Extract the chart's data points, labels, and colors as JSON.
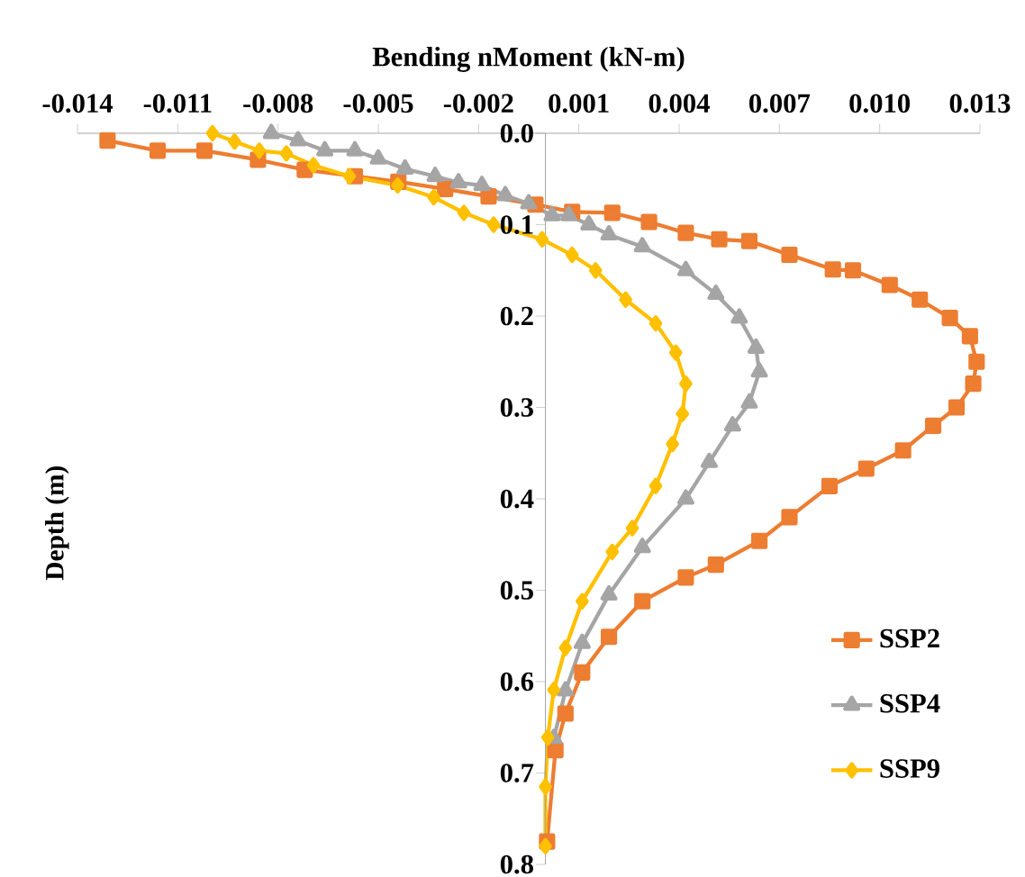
{
  "chart_data": {
    "type": "line",
    "xlabel": "Bending nMoment (kN-m)",
    "ylabel": "Depth (m)",
    "xlim": [
      -0.014,
      0.013
    ],
    "xticks": [
      -0.014,
      -0.011,
      -0.008,
      -0.005,
      -0.002,
      0.001,
      0.004,
      0.007,
      {
        "value": 0.01,
        "label": "0.010"
      },
      0.013
    ],
    "ylim": [
      0.8,
      0.0
    ],
    "yticks": [
      {
        "value": 0,
        "label": "0.0"
      },
      {
        "value": 0.1,
        "label": "0.1"
      },
      {
        "value": 0.2,
        "label": "0.2"
      },
      {
        "value": 0.3,
        "label": "0.3"
      },
      {
        "value": 0.4,
        "label": "0.4"
      },
      {
        "value": 0.5,
        "label": "0.5"
      },
      {
        "value": 0.6,
        "label": "0.6"
      },
      {
        "value": 0.7,
        "label": "0.7"
      },
      {
        "value": 0.8,
        "label": "0.8"
      }
    ],
    "legend": "bottom right",
    "line_style": "solid",
    "series": [
      {
        "name": "SSP2",
        "color": "#ed7d31",
        "marker": "square",
        "x": [
          -0.0131,
          -0.0116,
          -0.0102,
          -0.0086,
          -0.0072,
          -0.0057,
          -0.0044,
          -0.003,
          -0.0017,
          -0.0003,
          0.0008,
          0.002,
          0.0031,
          0.0042,
          0.0052,
          0.0061,
          0.0073,
          0.0086,
          0.0092,
          0.0103,
          0.0112,
          0.0121,
          0.0127,
          0.0129,
          0.0128,
          0.0123,
          0.0116,
          0.0107,
          0.0096,
          0.0085,
          0.0073,
          0.0064,
          0.0051,
          0.0042,
          0.0029,
          0.0019,
          0.0011,
          0.0006,
          0.0003,
          0.00015,
          5e-05
        ],
        "values": [
          0.008,
          0.019,
          0.019,
          0.029,
          0.04,
          0.047,
          0.053,
          0.061,
          0.069,
          0.078,
          0.086,
          0.087,
          0.097,
          0.109,
          0.116,
          0.118,
          0.133,
          0.149,
          0.15,
          0.166,
          0.182,
          0.202,
          0.222,
          0.25,
          0.274,
          0.3,
          0.32,
          0.347,
          0.367,
          0.386,
          0.42,
          0.446,
          0.472,
          0.486,
          0.512,
          0.551,
          0.59,
          0.635,
          0.675,
          null,
          0.775
        ]
      },
      {
        "name": "SSP4",
        "color": "#a5a5a5",
        "marker": "triangle",
        "x": [
          -0.0082,
          -0.0074,
          -0.0066,
          -0.0057,
          -0.005,
          -0.0042,
          -0.0033,
          -0.0026,
          -0.0019,
          -0.0012,
          -0.0005,
          0.0002,
          0.0007,
          0.0013,
          0.0019,
          0.0029,
          0.0042,
          0.0051,
          0.0058,
          0.0063,
          0.0064,
          0.0061,
          0.0056,
          0.0049,
          0.0042,
          0.0029,
          0.0019,
          0.0011,
          0.0006,
          0.00025
        ],
        "values": [
          0.0,
          0.008,
          0.019,
          0.019,
          0.028,
          0.039,
          0.047,
          0.054,
          0.057,
          0.068,
          0.077,
          0.09,
          0.09,
          0.1,
          0.111,
          0.124,
          0.15,
          0.176,
          0.202,
          0.235,
          0.261,
          0.295,
          0.32,
          0.36,
          0.4,
          0.453,
          0.505,
          0.558,
          0.61,
          0.662
        ]
      },
      {
        "name": "SSP9",
        "color": "#ffc000",
        "marker": "diamond",
        "x": [
          -0.00996,
          -0.0093,
          -0.00856,
          -0.00775,
          -0.00694,
          -0.00586,
          -0.00442,
          -0.00334,
          -0.00244,
          -0.00155,
          -0.0001,
          0.0008,
          0.0015,
          0.0024,
          0.0033,
          0.0039,
          0.0042,
          0.0041,
          0.0038,
          0.0033,
          0.0026,
          0.002,
          0.0011,
          0.0006,
          0.00025,
          7e-05,
          0.0,
          0.0
        ],
        "values": [
          0.0,
          0.009,
          0.019,
          0.022,
          0.035,
          0.047,
          0.057,
          0.07,
          0.087,
          0.1,
          0.116,
          0.133,
          0.15,
          0.182,
          0.208,
          0.24,
          0.274,
          0.307,
          0.34,
          0.386,
          0.432,
          0.458,
          0.512,
          0.563,
          0.609,
          0.661,
          0.715,
          0.78
        ]
      }
    ]
  }
}
